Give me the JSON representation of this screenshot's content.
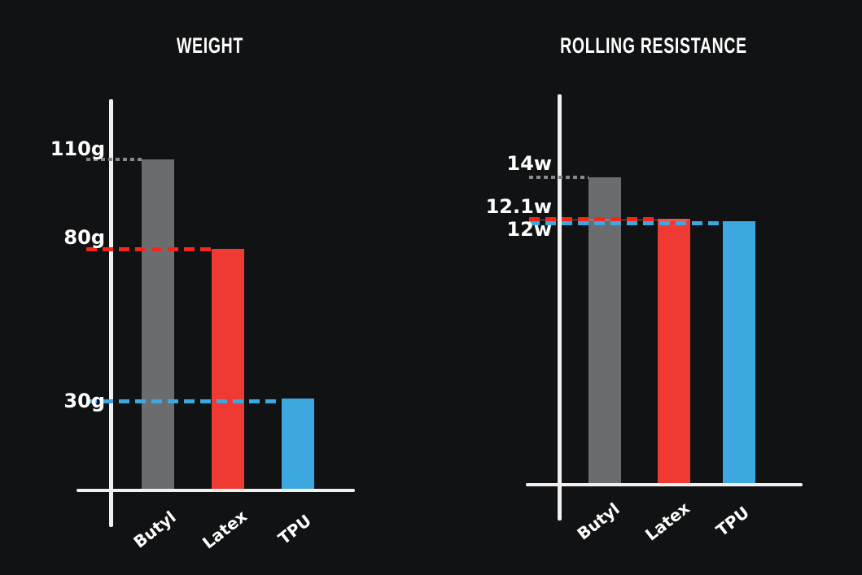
{
  "page": {
    "background_color": "#111213",
    "text_color": "#ffffff"
  },
  "chart_data": [
    {
      "type": "bar",
      "title": "WEIGHT",
      "categories": [
        "Butyl",
        "Latex",
        "TPU"
      ],
      "values": [
        110,
        80,
        30
      ],
      "value_labels": [
        "110g",
        "80g",
        "30g"
      ],
      "unit": "g",
      "xlabel": "",
      "ylabel": "",
      "ylim": [
        0,
        130
      ],
      "grid": false,
      "legend": false,
      "bar_colors": [
        "#6b6c6f",
        "#ee3a33",
        "#3da7e0"
      ],
      "leader_line_colors": [
        "#88898c",
        "#f5271b",
        "#3da7e0"
      ],
      "leader_line_styles": [
        "dotted",
        "dashed",
        "dashed"
      ],
      "axis_color": "#f0f0f0",
      "label_color": "#ffffff"
    },
    {
      "type": "bar",
      "title": "ROLLING RESISTANCE",
      "categories": [
        "Butyl",
        "Latex",
        "TPU"
      ],
      "values": [
        14,
        12.1,
        12
      ],
      "value_labels": [
        "14w",
        "12.1w",
        "12w"
      ],
      "unit": "w",
      "xlabel": "",
      "ylabel": "",
      "ylim": [
        0,
        17.8
      ],
      "grid": false,
      "legend": false,
      "bar_colors": [
        "#6b6c6f",
        "#ee3a33",
        "#3da7e0"
      ],
      "leader_line_colors": [
        "#88898c",
        "#f5271b",
        "#3da7e0"
      ],
      "leader_line_styles": [
        "dotted",
        "dashed",
        "dashed"
      ],
      "axis_color": "#f0f0f0",
      "label_color": "#ffffff"
    }
  ]
}
